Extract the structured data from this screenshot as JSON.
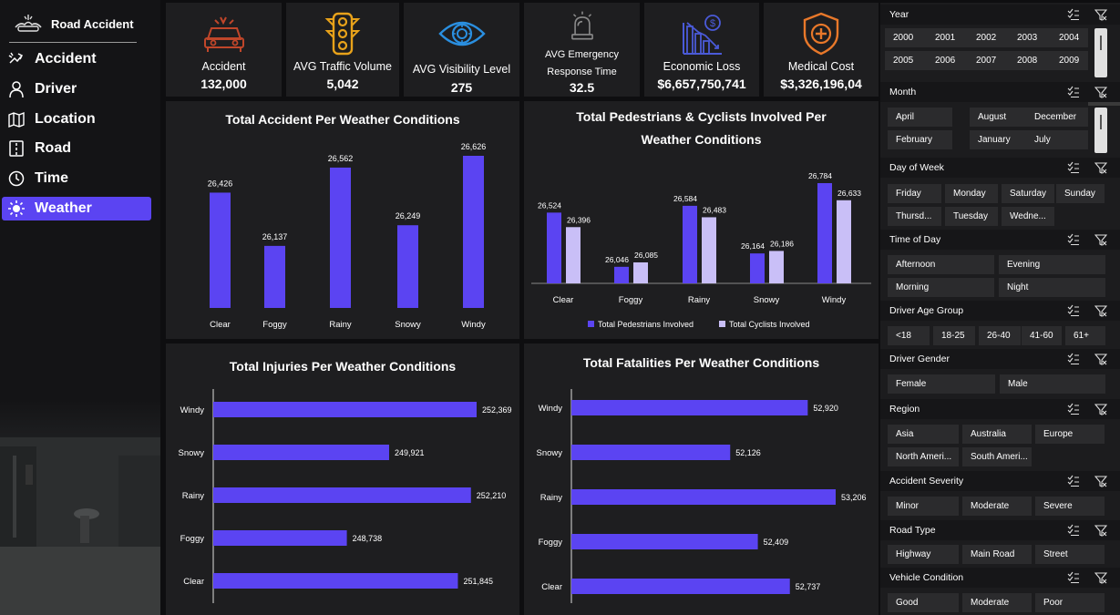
{
  "brand": {
    "title": "Road Accident"
  },
  "nav": [
    {
      "label": "Accident",
      "icon": "accident-icon"
    },
    {
      "label": "Driver",
      "icon": "driver-icon"
    },
    {
      "label": "Location",
      "icon": "map-icon"
    },
    {
      "label": "Road",
      "icon": "road-icon"
    },
    {
      "label": "Time",
      "icon": "clock-icon"
    },
    {
      "label": "Weather",
      "icon": "sun-icon",
      "active": true
    }
  ],
  "kpis": [
    {
      "label": "Accident",
      "value": "132,000",
      "icon": "car-crash-icon",
      "color": "#c0462a"
    },
    {
      "label": "AVG Traffic Volume",
      "value": "5,042",
      "icon": "traffic-light-icon",
      "color": "#e8a21a"
    },
    {
      "label": "AVG Visibility Level",
      "value": "275",
      "icon": "eye-icon",
      "color": "#2a8fe0"
    },
    {
      "label_line1": "AVG Emergency",
      "label_line2": "Response Time",
      "value": "32.5",
      "icon": "siren-icon",
      "color": "#8a8a8a"
    },
    {
      "label": "Economic Loss",
      "value": "$6,657,750,741",
      "icon": "economic-loss-icon",
      "color": "#4a5ad8"
    },
    {
      "label": "Medical Cost",
      "value": "$3,326,196,04",
      "icon": "medical-shield-icon",
      "color": "#e8782a"
    }
  ],
  "colors": {
    "accent": "#5b44f2",
    "secondary": "#c9bff7",
    "panel": "#1e1e20"
  },
  "chart_data": [
    {
      "type": "bar",
      "title": "Total Accident Per Weather Conditions",
      "categories": [
        "Clear",
        "Foggy",
        "Rainy",
        "Snowy",
        "Windy"
      ],
      "values": [
        26426,
        26137,
        26562,
        26249,
        26626
      ],
      "value_labels": [
        "26,426",
        "26,137",
        "26,562",
        "26,249",
        "26,626"
      ]
    },
    {
      "type": "bar",
      "title_line1": "Total Pedestrians & Cyclists Involved Per",
      "title_line2": "Weather Conditions",
      "categories": [
        "Clear",
        "Foggy",
        "Rainy",
        "Snowy",
        "Windy"
      ],
      "series": [
        {
          "name": "Total Pedestrians Involved",
          "values": [
            26524,
            26046,
            26584,
            26164,
            26784
          ],
          "labels": [
            "26,524",
            "26,046",
            "26,584",
            "26,164",
            "26,784"
          ]
        },
        {
          "name": "Total Cyclists Involved",
          "values": [
            26396,
            26085,
            26483,
            26186,
            26633
          ],
          "labels": [
            "26,396",
            "26,085",
            "26,483",
            "26,186",
            "26,633"
          ]
        }
      ],
      "legend": "bottom"
    },
    {
      "type": "bar",
      "orientation": "horizontal",
      "title": "Total Injuries Per Weather Conditions",
      "categories": [
        "Windy",
        "Snowy",
        "Rainy",
        "Foggy",
        "Clear"
      ],
      "values": [
        252369,
        249921,
        252210,
        248738,
        251845
      ],
      "value_labels": [
        "252,369",
        "249,921",
        "252,210",
        "248,738",
        "251,845"
      ]
    },
    {
      "type": "bar",
      "orientation": "horizontal",
      "title": "Total Fatalities Per Weather Conditions",
      "categories": [
        "Windy",
        "Snowy",
        "Rainy",
        "Foggy",
        "Clear"
      ],
      "values": [
        52920,
        52126,
        53206,
        52409,
        52737
      ],
      "value_labels": [
        "52,920",
        "52,126",
        "53,206",
        "52,409",
        "52,737"
      ]
    }
  ],
  "filters": [
    {
      "name": "Year",
      "options": [
        "2000",
        "2001",
        "2002",
        "2003",
        "2004",
        "2005",
        "2006",
        "2007",
        "2008",
        "2009"
      ]
    },
    {
      "name": "Month",
      "options": [
        "April",
        "August",
        "December",
        "February",
        "January",
        "July"
      ]
    },
    {
      "name": "Day of Week",
      "options": [
        "Friday",
        "Monday",
        "Saturday",
        "Sunday",
        "Thursd...",
        "Tuesday",
        "Wedne..."
      ]
    },
    {
      "name": "Time of Day",
      "options": [
        "Afternoon",
        "Evening",
        "Morning",
        "Night"
      ]
    },
    {
      "name": "Driver Age Group",
      "options": [
        "<18",
        "18-25",
        "26-40",
        "41-60",
        "61+"
      ]
    },
    {
      "name": "Driver Gender",
      "options": [
        "Female",
        "Male"
      ]
    },
    {
      "name": "Region",
      "options": [
        "Asia",
        "Australia",
        "Europe",
        "North Ameri...",
        "South Ameri..."
      ]
    },
    {
      "name": "Accident Severity",
      "options": [
        "Minor",
        "Moderate",
        "Severe"
      ]
    },
    {
      "name": "Road Type",
      "options": [
        "Highway",
        "Main Road",
        "Street"
      ]
    },
    {
      "name": "Vehicle Condition",
      "options": [
        "Good",
        "Moderate",
        "Poor"
      ]
    }
  ]
}
